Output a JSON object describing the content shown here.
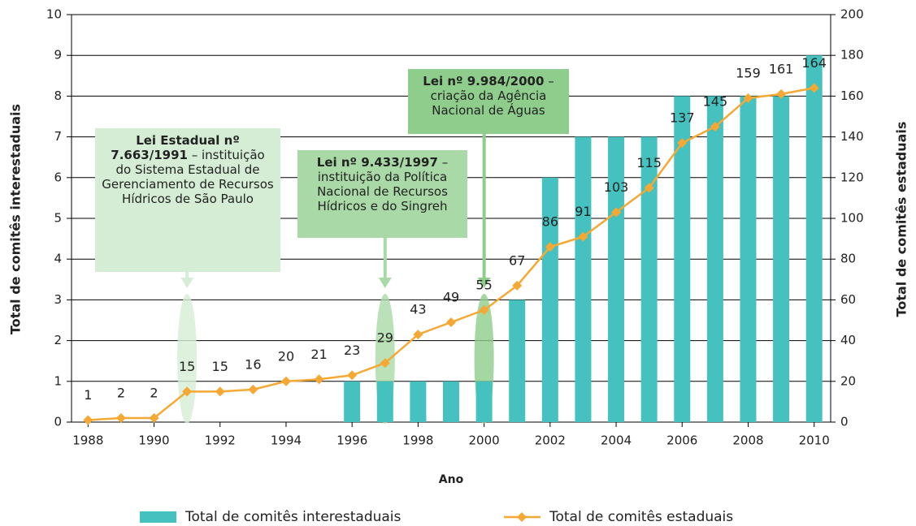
{
  "chart_data": {
    "type": "bar-line",
    "x_label": "Ano",
    "y_label": "Total de comitês interestaduais",
    "y2_label": "Total de comitês estaduais",
    "x": [
      1988,
      1989,
      1990,
      1991,
      1992,
      1993,
      1994,
      1995,
      1996,
      1997,
      1998,
      1999,
      2000,
      2001,
      2002,
      2003,
      2004,
      2005,
      2006,
      2007,
      2008,
      2009,
      2010
    ],
    "xlim": [
      1987.5,
      2010.5
    ],
    "xticks": [
      1988,
      1990,
      1992,
      1994,
      1996,
      1998,
      2000,
      2002,
      2004,
      2006,
      2008,
      2010
    ],
    "ylim": [
      0,
      10
    ],
    "yticks": [
      0,
      1,
      2,
      3,
      4,
      5,
      6,
      7,
      8,
      9,
      10
    ],
    "y2lim": [
      0,
      200
    ],
    "y2ticks": [
      0,
      20,
      40,
      60,
      80,
      100,
      120,
      140,
      160,
      180,
      200
    ],
    "grid": true,
    "legend": "bottom",
    "series": [
      {
        "name": "Total de comitês interestaduais",
        "type": "bar",
        "color": "#45c1bf",
        "values": [
          0,
          0,
          0,
          0,
          0,
          0,
          0,
          0,
          1,
          1,
          1,
          1,
          1,
          3,
          6,
          7,
          7,
          7,
          8,
          8,
          8,
          8,
          9
        ]
      },
      {
        "name": "Total de comitês estaduais",
        "type": "line",
        "axis": "y2",
        "color": "#f5a833",
        "values": [
          1,
          2,
          2,
          15,
          15,
          16,
          20,
          21,
          23,
          29,
          43,
          49,
          55,
          67,
          86,
          91,
          103,
          115,
          137,
          145,
          159,
          161,
          164
        ]
      }
    ],
    "annotations": [
      {
        "x": 1991,
        "bold": "Lei Estadual nº 7.663/1991",
        "text": " – instituição do Sistema Estadual de Gerenciamento de Recursos Hídricos de São Paulo",
        "color": "#d5edd5"
      },
      {
        "x": 1997,
        "bold": "Lei  nº 9.433/1997",
        "text": " – instituição da Política Nacional de Recursos Hídricos e do Singreh",
        "color": "#a9d9a6"
      },
      {
        "x": 2000,
        "bold": "Lei nº 9.984/2000",
        "text": " – criação da Agência Nacional de Águas",
        "color": "#8fcd8c"
      }
    ]
  }
}
